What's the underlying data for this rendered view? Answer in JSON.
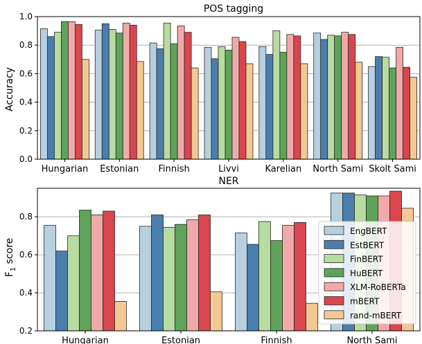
{
  "chart_data": [
    {
      "type": "bar",
      "title": "POS tagging",
      "ylabel": "Accuracy",
      "ylim": [
        0,
        1.0
      ],
      "yticks": [
        "0.0",
        "0.2",
        "0.4",
        "0.6",
        "0.8",
        "1.0"
      ],
      "grid": true,
      "categories": [
        "Hungarian",
        "Estonian",
        "Finnish",
        "Livvi",
        "Karelian",
        "North Sami",
        "Skolt Sami"
      ],
      "series": [
        {
          "name": "EngBERT",
          "color": "#b7d0e0",
          "values": [
            0.915,
            0.905,
            0.815,
            0.785,
            0.79,
            0.885,
            0.65
          ]
        },
        {
          "name": "EstBERT",
          "color": "#4a7eac",
          "values": [
            0.86,
            0.95,
            0.775,
            0.705,
            0.735,
            0.84,
            0.72
          ]
        },
        {
          "name": "FinBERT",
          "color": "#b8dba0",
          "values": [
            0.89,
            0.91,
            0.955,
            0.79,
            0.9,
            0.87,
            0.715
          ]
        },
        {
          "name": "HuBERT",
          "color": "#5ea359",
          "values": [
            0.965,
            0.885,
            0.81,
            0.765,
            0.75,
            0.865,
            0.64
          ]
        },
        {
          "name": "XLM-RoBERTa",
          "color": "#f0a9a9",
          "values": [
            0.965,
            0.955,
            0.935,
            0.855,
            0.875,
            0.89,
            0.785
          ]
        },
        {
          "name": "mBERT",
          "color": "#d9464d",
          "values": [
            0.945,
            0.94,
            0.89,
            0.825,
            0.865,
            0.875,
            0.645
          ]
        },
        {
          "name": "rand-mBERT",
          "color": "#f3c892",
          "values": [
            0.7,
            0.685,
            0.64,
            0.67,
            0.67,
            0.68,
            0.575
          ]
        }
      ]
    },
    {
      "type": "bar",
      "title": "NER",
      "ylabel": "F",
      "ylabel_sub": "1",
      "ylabel_rest": " score",
      "ylim": [
        0.2,
        0.95
      ],
      "yticks": [
        "0.2",
        "0.4",
        "0.6",
        "0.8"
      ],
      "grid": true,
      "legend": "right",
      "categories": [
        "Hungarian",
        "Estonian",
        "Finnish",
        "North Sami"
      ],
      "series": [
        {
          "name": "EngBERT",
          "color": "#b7d0e0",
          "values": [
            0.755,
            0.75,
            0.715,
            0.925
          ]
        },
        {
          "name": "EstBERT",
          "color": "#4a7eac",
          "values": [
            0.62,
            0.81,
            0.655,
            0.925
          ]
        },
        {
          "name": "FinBERT",
          "color": "#b8dba0",
          "values": [
            0.7,
            0.745,
            0.775,
            0.915
          ]
        },
        {
          "name": "HuBERT",
          "color": "#5ea359",
          "values": [
            0.835,
            0.76,
            0.675,
            0.91
          ]
        },
        {
          "name": "XLM-RoBERTa",
          "color": "#f0a9a9",
          "values": [
            0.81,
            0.785,
            0.755,
            0.91
          ]
        },
        {
          "name": "mBERT",
          "color": "#d9464d",
          "values": [
            0.83,
            0.81,
            0.77,
            0.935
          ]
        },
        {
          "name": "rand-mBERT",
          "color": "#f3c892",
          "values": [
            0.355,
            0.405,
            0.345,
            0.845
          ]
        }
      ]
    }
  ]
}
